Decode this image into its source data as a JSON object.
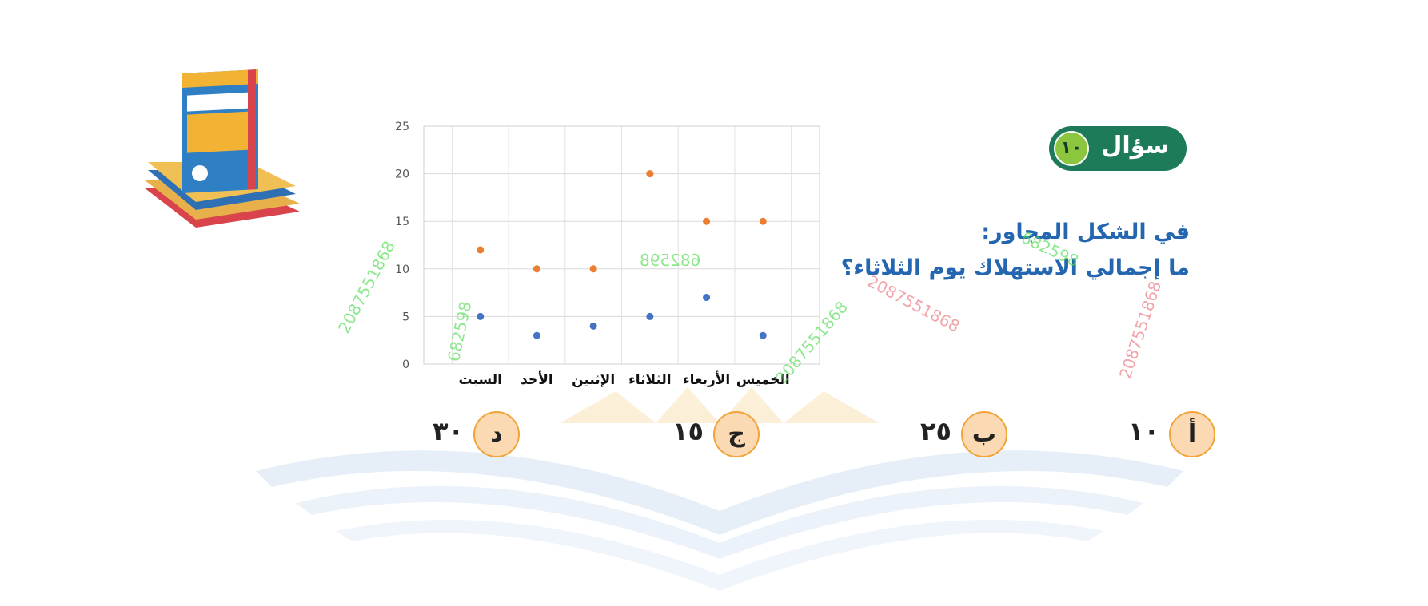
{
  "question": {
    "label": "سؤال",
    "number": "١٠",
    "line1": "في الشكل المجاور:",
    "line2": "ما إجمالي الاستهلاك يوم الثلاثاء؟"
  },
  "answers": [
    {
      "letter": "أ",
      "value": "١٠"
    },
    {
      "letter": "ب",
      "value": "٢٥"
    },
    {
      "letter": "ج",
      "value": "١٥"
    },
    {
      "letter": "د",
      "value": "٣٠"
    }
  ],
  "watermarks": {
    "code_a": "2087551868",
    "code_b": "682598"
  },
  "colors": {
    "badge": "#1e7b5a",
    "badge_number": "#8cc63f",
    "question_text": "#2467b0",
    "answer_circle": "#fbd9b2",
    "answer_border": "#f0a43a",
    "series_blue": "#4472c4",
    "series_orange": "#ed7d31"
  },
  "chart_data": {
    "type": "scatter",
    "categories": [
      "السبت",
      "الأحد",
      "الإثنين",
      "الثلاثاء",
      "الأربعاء",
      "الخميس"
    ],
    "series": [
      {
        "color": "#ed7d31",
        "values": [
          12,
          10,
          10,
          20,
          15,
          15
        ]
      },
      {
        "color": "#4472c4",
        "values": [
          5,
          3,
          4,
          5,
          7,
          3
        ]
      }
    ],
    "ylim": [
      0,
      25
    ],
    "yticks": [
      0,
      5,
      10,
      15,
      20,
      25
    ],
    "grid": true,
    "legend": "none",
    "title": "",
    "xlabel": "",
    "ylabel": ""
  }
}
